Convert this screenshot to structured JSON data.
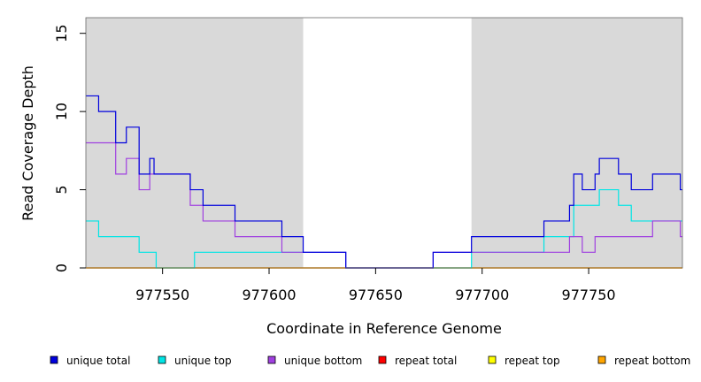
{
  "chart_data": {
    "type": "line",
    "step": true,
    "xlabel": "Coordinate in Reference Genome",
    "ylabel": "Read Coverage Depth",
    "xlim": [
      977514,
      977794
    ],
    "ylim": [
      0,
      16
    ],
    "x_ticks": [
      977550,
      977600,
      977650,
      977700,
      977750
    ],
    "y_ticks": [
      0,
      5,
      10,
      15
    ],
    "shaded_regions": [
      [
        977514,
        977616
      ],
      [
        977695,
        977794
      ]
    ],
    "shade_color": "#d9d9d9",
    "legend_position": "bottom",
    "series": [
      {
        "name": "unique total",
        "color": "#0000dd",
        "points": [
          [
            977514,
            11
          ],
          [
            977520,
            10
          ],
          [
            977528,
            8
          ],
          [
            977533,
            9
          ],
          [
            977539,
            6
          ],
          [
            977544,
            7
          ],
          [
            977546,
            6
          ],
          [
            977563,
            5
          ],
          [
            977569,
            4
          ],
          [
            977584,
            3
          ],
          [
            977606,
            2
          ],
          [
            977616,
            1
          ],
          [
            977636,
            0
          ],
          [
            977677,
            1
          ],
          [
            977695,
            2
          ],
          [
            977729,
            3
          ],
          [
            977741,
            4
          ],
          [
            977743,
            6
          ],
          [
            977747,
            5
          ],
          [
            977753,
            6
          ],
          [
            977755,
            7
          ],
          [
            977764,
            6
          ],
          [
            977770,
            5
          ],
          [
            977780,
            6
          ],
          [
            977793,
            5
          ],
          [
            977794,
            5
          ]
        ]
      },
      {
        "name": "unique top",
        "color": "#00e5e5",
        "points": [
          [
            977514,
            3
          ],
          [
            977520,
            2
          ],
          [
            977539,
            1
          ],
          [
            977547,
            0
          ],
          [
            977565,
            1
          ],
          [
            977636,
            0
          ],
          [
            977695,
            1
          ],
          [
            977729,
            2
          ],
          [
            977743,
            4
          ],
          [
            977755,
            5
          ],
          [
            977764,
            4
          ],
          [
            977770,
            3
          ],
          [
            977794,
            3
          ]
        ]
      },
      {
        "name": "unique bottom",
        "color": "#a040e0",
        "points": [
          [
            977514,
            8
          ],
          [
            977528,
            6
          ],
          [
            977533,
            7
          ],
          [
            977539,
            5
          ],
          [
            977544,
            6
          ],
          [
            977563,
            4
          ],
          [
            977569,
            3
          ],
          [
            977584,
            2
          ],
          [
            977606,
            1
          ],
          [
            977636,
            0
          ],
          [
            977677,
            1
          ],
          [
            977741,
            2
          ],
          [
            977747,
            1
          ],
          [
            977753,
            2
          ],
          [
            977780,
            3
          ],
          [
            977793,
            2
          ],
          [
            977794,
            2
          ]
        ]
      },
      {
        "name": "repeat total",
        "color": "#ff0000",
        "points": [
          [
            977514,
            0
          ],
          [
            977794,
            0
          ]
        ]
      },
      {
        "name": "repeat top",
        "color": "#ffff00",
        "points": [
          [
            977514,
            0
          ],
          [
            977794,
            0
          ]
        ]
      },
      {
        "name": "repeat bottom",
        "color": "#ffa500",
        "points": [
          [
            977514,
            0
          ],
          [
            977794,
            0
          ]
        ]
      }
    ]
  }
}
